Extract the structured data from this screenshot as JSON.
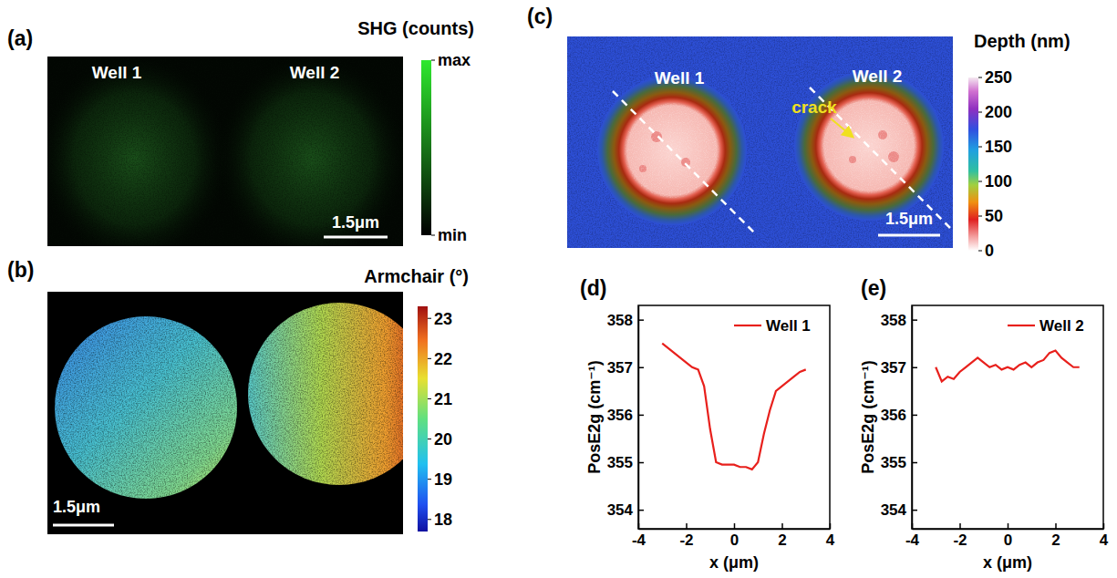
{
  "chart_data": [
    {
      "type": "image",
      "panel_label": "(a)",
      "annotations": [
        "Well 1",
        "Well 2"
      ],
      "scale_bar": "1.5μm",
      "colorbar_title": "SHG (counts)",
      "colorbar_range": [
        0,
        1
      ],
      "colorbar_ticks": [
        {
          "value": 1,
          "label": "max"
        },
        {
          "value": 0,
          "label": "min"
        }
      ]
    },
    {
      "type": "image",
      "panel_label": "(b)",
      "scale_bar": "1.5μm",
      "colorbar_title": "Armchair (°)",
      "colorbar_range": [
        17.7,
        23.3
      ],
      "colorbar_ticks": [
        18,
        19,
        20,
        21,
        22,
        23
      ]
    },
    {
      "type": "image",
      "panel_label": "(c)",
      "annotations": [
        "Well 1",
        "Well 2",
        "crack"
      ],
      "scale_bar": "1.5μm",
      "colorbar_title": "Depth (nm)",
      "colorbar_range": [
        0,
        250
      ],
      "colorbar_ticks": [
        0,
        50,
        100,
        150,
        200,
        250
      ]
    },
    {
      "type": "line",
      "panel_label": "(d)",
      "x": [
        -3,
        -2.75,
        -2.5,
        -2.25,
        -2,
        -1.75,
        -1.5,
        -1.25,
        -1,
        -0.75,
        -0.5,
        -0.25,
        0,
        0.25,
        0.5,
        0.75,
        1,
        1.25,
        1.5,
        1.75,
        2,
        2.25,
        2.5,
        2.75,
        3
      ],
      "series": [
        {
          "name": "Well 1",
          "color": "#e8201c",
          "values": [
            357.5,
            357.4,
            357.3,
            357.2,
            357.1,
            357.0,
            356.95,
            356.6,
            355.7,
            355.0,
            354.95,
            354.95,
            354.95,
            354.9,
            354.9,
            354.85,
            355.0,
            355.6,
            356.1,
            356.5,
            356.6,
            356.7,
            356.8,
            356.9,
            356.95
          ]
        }
      ],
      "xlabel": "x (μm)",
      "ylabel": "PosE2g (cm⁻¹)",
      "xlim": [
        -4,
        4
      ],
      "xticks": [
        -4,
        -2,
        0,
        2,
        4
      ],
      "ylim": [
        353.6,
        358.3
      ],
      "yticks": [
        354,
        355,
        356,
        357,
        358
      ],
      "legend": "top-right"
    },
    {
      "type": "line",
      "panel_label": "(e)",
      "x": [
        -3,
        -2.75,
        -2.5,
        -2.25,
        -2,
        -1.75,
        -1.5,
        -1.25,
        -1,
        -0.75,
        -0.5,
        -0.25,
        0,
        0.25,
        0.5,
        0.75,
        1,
        1.25,
        1.5,
        1.75,
        2,
        2.25,
        2.5,
        2.75,
        3
      ],
      "series": [
        {
          "name": "Well 2",
          "color": "#e8201c",
          "values": [
            357.0,
            356.7,
            356.8,
            356.75,
            356.9,
            357.0,
            357.1,
            357.2,
            357.1,
            357.0,
            357.05,
            356.95,
            357.0,
            356.95,
            357.05,
            357.1,
            357.0,
            357.1,
            357.15,
            357.3,
            357.35,
            357.2,
            357.1,
            357.0,
            357.0
          ]
        }
      ],
      "xlabel": "x (μm)",
      "ylabel": "PosE2g (cm⁻¹)",
      "xlim": [
        -4,
        4
      ],
      "xticks": [
        -4,
        -2,
        0,
        2,
        4
      ],
      "ylim": [
        353.6,
        358.3
      ],
      "yticks": [
        354,
        355,
        356,
        357,
        358
      ],
      "legend": "top-right"
    }
  ]
}
